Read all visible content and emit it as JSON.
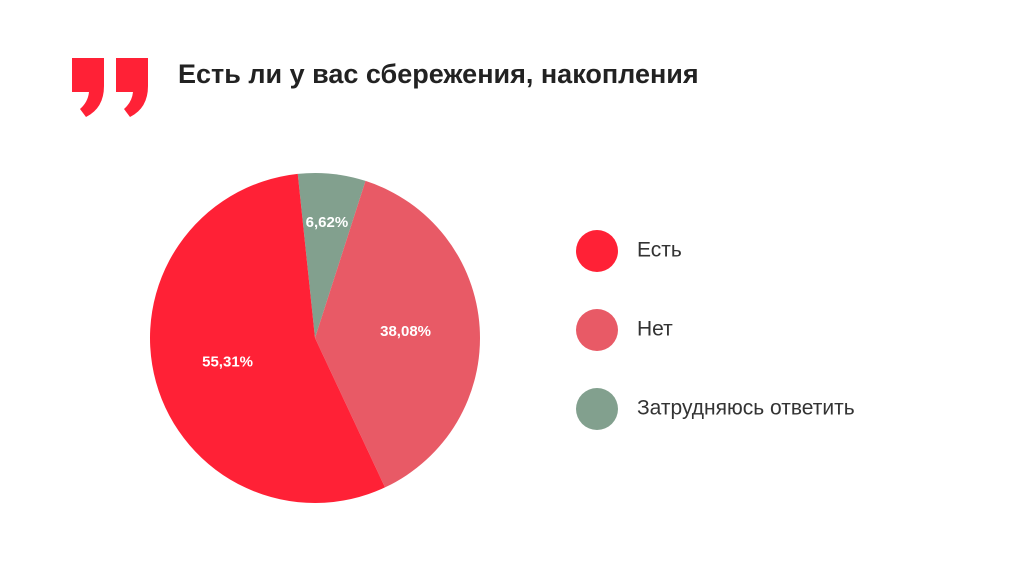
{
  "chart_data": {
    "type": "pie",
    "title": "Есть ли у вас сбережения, накопления",
    "categories": [
      "Есть",
      "Нет",
      "Затрудняюсь ответить"
    ],
    "values": [
      55.31,
      38.08,
      6.62
    ],
    "value_labels": [
      "55,31%",
      "38,08%",
      "6,62%"
    ],
    "colors": [
      "#ff2136",
      "#e85a66",
      "#82a08e"
    ],
    "legend": "right"
  }
}
